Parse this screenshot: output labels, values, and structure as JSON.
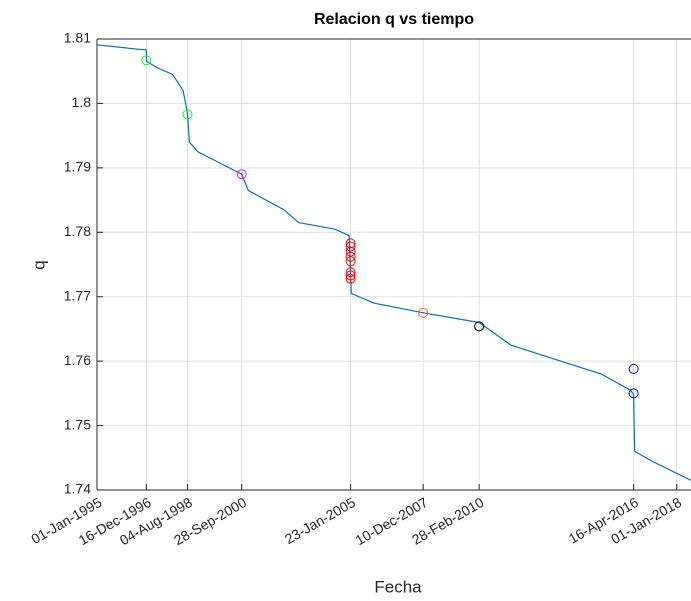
{
  "chart_data": {
    "type": "line",
    "title": "Relacion q vs tiempo",
    "xlabel": "Fecha",
    "ylabel": "q",
    "grid": true,
    "xlim": [
      "1995-01-01",
      "2018-07-26"
    ],
    "ylim": [
      1.74,
      1.81
    ],
    "yticks": [
      1.74,
      1.75,
      1.76,
      1.77,
      1.78,
      1.79,
      1.8,
      1.81
    ],
    "xticks": [
      {
        "value": "1995-01-01",
        "label": "01-Jan-1995"
      },
      {
        "value": "1996-12-16",
        "label": "16-Dec-1996"
      },
      {
        "value": "1998-08-04",
        "label": "04-Aug-1998"
      },
      {
        "value": "2000-09-28",
        "label": "28-Sep-2000"
      },
      {
        "value": "2005-01-23",
        "label": "23-Jan-2005"
      },
      {
        "value": "2007-12-10",
        "label": "10-Dec-2007"
      },
      {
        "value": "2010-02-28",
        "label": "28-Feb-2010"
      },
      {
        "value": "2016-04-16",
        "label": "16-Apr-2016"
      },
      {
        "value": "2018-01-01",
        "label": "01-Jan-2018"
      }
    ],
    "series": [
      {
        "color": "#0072bd",
        "kind": "line",
        "x": [
          "1995-01-01",
          "1996-06-01",
          "1996-12-16",
          "1996-12-20",
          "1997-06-01",
          "1998-01-01",
          "1998-06-01",
          "1998-08-04",
          "1998-09-01",
          "1999-01-01",
          "2000-01-01",
          "2000-09-28",
          "2001-01-01",
          "2002-06-01",
          "2003-01-01",
          "2004-06-01",
          "2005-01-01",
          "2005-02-01",
          "2006-01-01",
          "2007-12-10",
          "2010-02-28",
          "2011-06-01",
          "2013-01-01",
          "2015-01-01",
          "2016-03-01",
          "2016-04-16",
          "2016-05-01",
          "2017-01-01",
          "2018-07-26"
        ],
        "values": [
          1.8091,
          1.8085,
          1.8083,
          1.8065,
          1.8055,
          1.8045,
          1.802,
          1.7985,
          1.794,
          1.7925,
          1.7905,
          1.789,
          1.7865,
          1.7835,
          1.7815,
          1.7805,
          1.7795,
          1.7705,
          1.769,
          1.7675,
          1.766,
          1.7625,
          1.7605,
          1.758,
          1.7555,
          1.7548,
          1.746,
          1.7445,
          1.7415
        ]
      },
      {
        "color": "#00ff00",
        "kind": "scatter",
        "x": [
          "1996-12-16",
          "1998-08-04"
        ],
        "values": [
          1.8067,
          1.7983
        ]
      },
      {
        "color": "#ff00ff",
        "kind": "scatter",
        "x": [
          "2000-09-28"
        ],
        "values": [
          1.789
        ]
      },
      {
        "color": "#ff0000",
        "kind": "scatter",
        "x": [
          "2005-01-23",
          "2005-01-23",
          "2005-01-23",
          "2005-01-23",
          "2005-01-23",
          "2005-01-23",
          "2005-01-23",
          "2005-01-23"
        ],
        "values": [
          1.7783,
          1.7778,
          1.777,
          1.7762,
          1.7755,
          1.7738,
          1.7733,
          1.7728
        ]
      },
      {
        "color": "#ff6929",
        "kind": "scatter",
        "x": [
          "2007-12-10"
        ],
        "values": [
          1.7675
        ]
      },
      {
        "color": "#000000",
        "kind": "scatter",
        "x": [
          "2010-02-28"
        ],
        "values": [
          1.7654
        ]
      },
      {
        "color": "#0000ff",
        "kind": "scatter",
        "x": [
          "2016-04-16",
          "2016-04-16"
        ],
        "values": [
          1.7588,
          1.755
        ]
      }
    ]
  }
}
